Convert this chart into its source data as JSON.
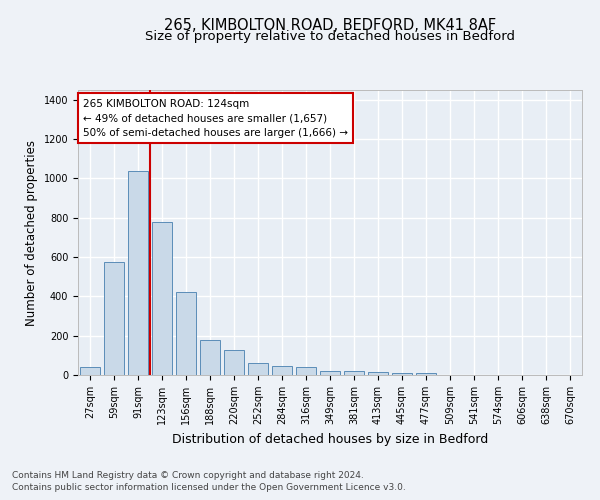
{
  "title_line1": "265, KIMBOLTON ROAD, BEDFORD, MK41 8AF",
  "title_line2": "Size of property relative to detached houses in Bedford",
  "xlabel": "Distribution of detached houses by size in Bedford",
  "ylabel": "Number of detached properties",
  "categories": [
    "27sqm",
    "59sqm",
    "91sqm",
    "123sqm",
    "156sqm",
    "188sqm",
    "220sqm",
    "252sqm",
    "284sqm",
    "316sqm",
    "349sqm",
    "381sqm",
    "413sqm",
    "445sqm",
    "477sqm",
    "509sqm",
    "541sqm",
    "574sqm",
    "606sqm",
    "638sqm",
    "670sqm"
  ],
  "values": [
    40,
    575,
    1040,
    780,
    420,
    180,
    125,
    60,
    45,
    40,
    20,
    20,
    15,
    10,
    8,
    0,
    0,
    0,
    0,
    0,
    0
  ],
  "bar_color": "#c9d9e8",
  "bar_edge_color": "#5b8db8",
  "vline_index": 3,
  "vline_color": "#cc0000",
  "annotation_title": "265 KIMBOLTON ROAD: 124sqm",
  "annotation_line1": "← 49% of detached houses are smaller (1,657)",
  "annotation_line2": "50% of semi-detached houses are larger (1,666) →",
  "annotation_box_facecolor": "#ffffff",
  "annotation_box_edgecolor": "#cc0000",
  "ylim": [
    0,
    1450
  ],
  "yticks": [
    0,
    200,
    400,
    600,
    800,
    1000,
    1200,
    1400
  ],
  "footer_line1": "Contains HM Land Registry data © Crown copyright and database right 2024.",
  "footer_line2": "Contains public sector information licensed under the Open Government Licence v3.0.",
  "background_color": "#eef2f7",
  "plot_background": "#e8eef5",
  "grid_color": "#ffffff",
  "title_fontsize": 10.5,
  "subtitle_fontsize": 9.5,
  "ylabel_fontsize": 8.5,
  "xlabel_fontsize": 9,
  "tick_fontsize": 7,
  "annotation_fontsize": 7.5,
  "footer_fontsize": 6.5
}
